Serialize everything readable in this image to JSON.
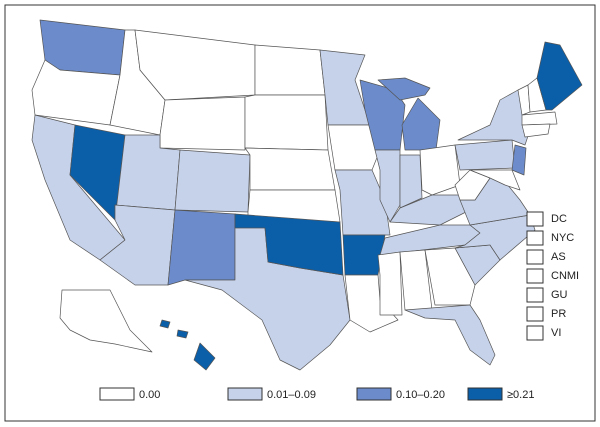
{
  "legend": [
    {
      "label": "0.00",
      "color": "#ffffff"
    },
    {
      "label": "0.01–0.09",
      "color": "#c6d2ea"
    },
    {
      "label": "0.10–0.20",
      "color": "#6b8bcb"
    },
    {
      "label": "≥0.21",
      "color": "#0b5ea8"
    }
  ],
  "territories": [
    "DC",
    "NYC",
    "AS",
    "CNMI",
    "GU",
    "PR",
    "VI"
  ]
}
